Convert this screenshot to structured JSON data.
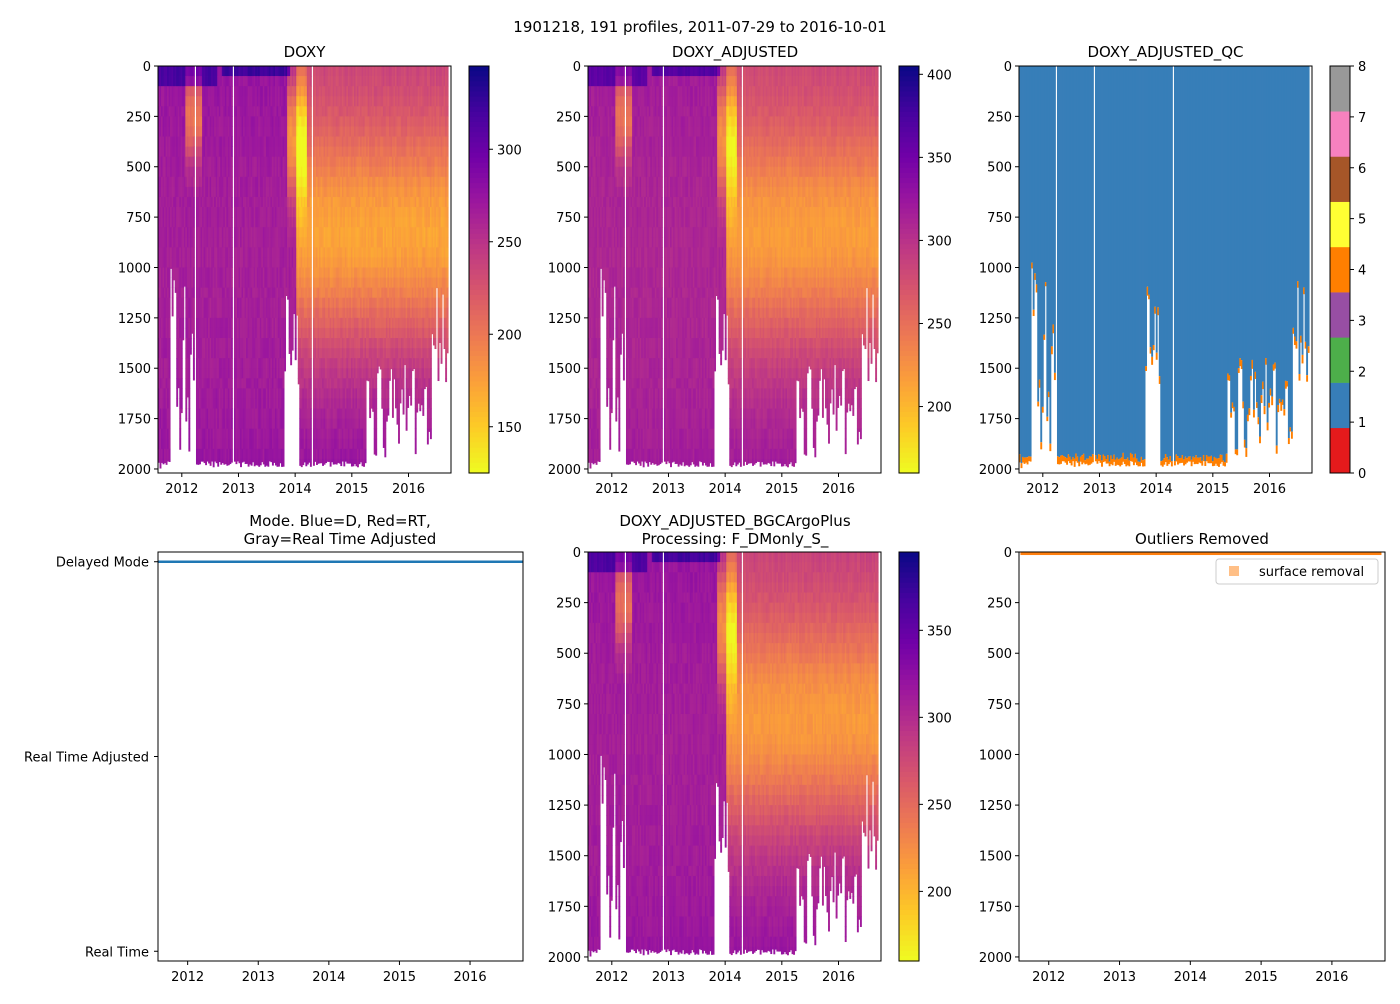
{
  "figure_title": "1901218, 191 profiles, 2011-07-29 to 2016-10-01",
  "colors": {
    "plasma": [
      "#0d0887",
      "#46039f",
      "#7201a8",
      "#9c179e",
      "#bd3786",
      "#d8576b",
      "#ed7953",
      "#fb9f3a",
      "#fdca26",
      "#f0f921"
    ],
    "qc": [
      "#e41a1c",
      "#377eb8",
      "#4daf4a",
      "#984ea3",
      "#ff7f00",
      "#ffff33",
      "#a65628",
      "#f781bf",
      "#999999"
    ],
    "mode_line": "#1f77b4",
    "outlier": "#ff7f0e"
  },
  "chart_data": [
    {
      "id": "doxy",
      "type": "heatmap",
      "title": "DOXY",
      "xlim": [
        2011.58,
        2016.75
      ],
      "ylim": [
        2020,
        0
      ],
      "xticks": [
        "2012",
        "2013",
        "2014",
        "2015",
        "2016"
      ],
      "yticks": [
        "0",
        "250",
        "500",
        "750",
        "1000",
        "1250",
        "1500",
        "1750",
        "2000"
      ],
      "colorbar": {
        "min": 125,
        "max": 345,
        "ticks": [
          "150",
          "200",
          "250",
          "300"
        ]
      }
    },
    {
      "id": "doxy_adj",
      "type": "heatmap",
      "title": "DOXY_ADJUSTED",
      "xlim": [
        2011.58,
        2016.75
      ],
      "ylim": [
        2020,
        0
      ],
      "xticks": [
        "2012",
        "2013",
        "2014",
        "2015",
        "2016"
      ],
      "yticks": [
        "0",
        "250",
        "500",
        "750",
        "1000",
        "1250",
        "1500",
        "1750",
        "2000"
      ],
      "colorbar": {
        "min": 160,
        "max": 405,
        "ticks": [
          "200",
          "250",
          "300",
          "350",
          "400"
        ]
      }
    },
    {
      "id": "doxy_qc",
      "type": "heatmap",
      "title": "DOXY_ADJUSTED_QC",
      "xlim": [
        2011.58,
        2016.75
      ],
      "ylim": [
        2020,
        0
      ],
      "xticks": [
        "2012",
        "2013",
        "2014",
        "2015",
        "2016"
      ],
      "yticks": [
        "0",
        "250",
        "500",
        "750",
        "1000",
        "1250",
        "1500",
        "1750",
        "2000"
      ],
      "colorbar": {
        "min": 0,
        "max": 8,
        "ticks": [
          "0",
          "1",
          "2",
          "3",
          "4",
          "5",
          "6",
          "7",
          "8"
        ]
      }
    },
    {
      "id": "mode",
      "type": "line",
      "title_lines": [
        "Mode. Blue=D, Red=RT,",
        "Gray=Real Time Adjusted"
      ],
      "xlim": [
        2011.58,
        2016.75
      ],
      "xticks": [
        "2012",
        "2013",
        "2014",
        "2015",
        "2016"
      ],
      "ycats": [
        "Delayed Mode",
        "Real Time Adjusted",
        "Real Time"
      ],
      "ylim": [
        -0.05,
        2.05
      ],
      "series": [
        {
          "name": "Delayed Mode",
          "x": [
            2011.58,
            2016.75
          ],
          "y": [
            2,
            2
          ]
        }
      ]
    },
    {
      "id": "doxy_bgc",
      "type": "heatmap",
      "title_lines": [
        "DOXY_ADJUSTED_BGCArgoPlus",
        "Processing: F_DMonly_S_"
      ],
      "xlim": [
        2011.58,
        2016.75
      ],
      "ylim": [
        2020,
        0
      ],
      "xticks": [
        "2012",
        "2013",
        "2014",
        "2015",
        "2016"
      ],
      "yticks": [
        "0",
        "250",
        "500",
        "750",
        "1000",
        "1250",
        "1500",
        "1750",
        "2000"
      ],
      "colorbar": {
        "min": 160,
        "max": 395,
        "ticks": [
          "200",
          "250",
          "300",
          "350"
        ]
      }
    },
    {
      "id": "outliers",
      "type": "scatter",
      "title": "Outliers Removed",
      "xlim": [
        2011.58,
        2016.75
      ],
      "ylim": [
        2020,
        0
      ],
      "xticks": [
        "2012",
        "2013",
        "2014",
        "2015",
        "2016"
      ],
      "yticks": [
        "0",
        "250",
        "500",
        "750",
        "1000",
        "1250",
        "1500",
        "1750",
        "2000"
      ],
      "legend": {
        "label": "surface removal",
        "position": "top-right"
      },
      "series": [
        {
          "name": "surface removal",
          "x_start": 2011.6,
          "x_end": 2016.7,
          "depth_min": 0,
          "depth_max": 15
        }
      ]
    }
  ]
}
